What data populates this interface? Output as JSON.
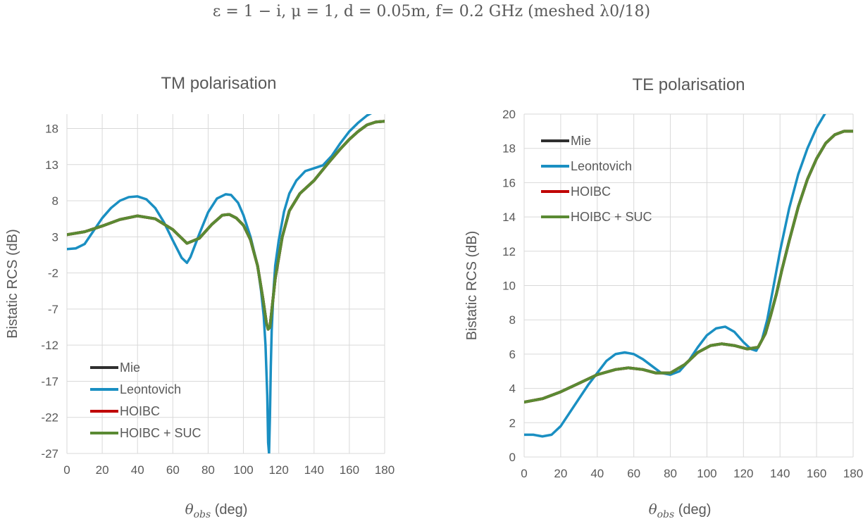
{
  "figure_title": "ε = 1 − i, μ = 1, d = 0.05m, f= 0.2 GHz (meshed λ0/18)",
  "colors": {
    "Mie": "#2f2f2f",
    "Leontovich": "#1a8fc2",
    "HOIBC": "#c00000",
    "HOIBC + SUC": "#5a8a33",
    "grid": "#d9d9d9",
    "text": "#595959"
  },
  "chart_data": [
    {
      "type": "line",
      "title": "TM polarisation",
      "xlabel_main": "θ",
      "xlabel_sub": "obs",
      "xlabel_unit": " (deg)",
      "ylabel": "Bistatic RCS (dB)",
      "xlim": [
        0,
        180
      ],
      "ylim": [
        -27,
        20
      ],
      "xticks": [
        "0",
        "20",
        "40",
        "60",
        "80",
        "100",
        "120",
        "140",
        "160",
        "180"
      ],
      "yticks": [
        "18",
        "13",
        "8",
        "3",
        "-2",
        "-7",
        "-12",
        "-17",
        "-22",
        "-27"
      ],
      "grid": true,
      "legend_position": "bottom-left",
      "series": [
        {
          "name": "Mie",
          "x": [
            0,
            10,
            20,
            30,
            40,
            50,
            60,
            68,
            75,
            82,
            88,
            92,
            96,
            100,
            104,
            108,
            111,
            113,
            114,
            115,
            116,
            118,
            122,
            126,
            132,
            140,
            148,
            155,
            160,
            165,
            170,
            175,
            180
          ],
          "values": [
            3.3,
            3.7,
            4.5,
            5.4,
            5.9,
            5.5,
            4.0,
            2.1,
            2.8,
            4.7,
            6.0,
            6.1,
            5.6,
            4.6,
            2.6,
            -1.0,
            -5.5,
            -8.9,
            -9.8,
            -9.5,
            -7.3,
            -2.8,
            3.0,
            6.6,
            9.0,
            10.8,
            13.2,
            15.2,
            16.5,
            17.6,
            18.5,
            18.9,
            19.0
          ]
        },
        {
          "name": "Leontovich",
          "x": [
            0,
            5,
            10,
            15,
            20,
            25,
            30,
            35,
            40,
            45,
            50,
            55,
            60,
            65,
            68,
            70,
            75,
            80,
            85,
            90,
            93,
            97,
            100,
            104,
            108,
            110,
            111.5,
            112.5,
            113.5,
            114,
            114.5,
            115,
            115.5,
            116,
            117,
            118,
            120,
            123,
            126,
            130,
            135,
            140,
            145,
            150,
            155,
            160,
            165,
            170,
            175,
            180
          ],
          "values": [
            1.3,
            1.4,
            2.0,
            3.8,
            5.6,
            7.0,
            8.0,
            8.5,
            8.6,
            8.2,
            7.0,
            5.0,
            2.5,
            0.1,
            -0.6,
            0.2,
            3.4,
            6.4,
            8.3,
            8.9,
            8.8,
            7.7,
            6.0,
            3.0,
            -1.0,
            -4.5,
            -8.0,
            -12.0,
            -19.0,
            -25.5,
            -27,
            -22.0,
            -15.0,
            -10.0,
            -4.6,
            -1.0,
            2.5,
            6.5,
            9.0,
            10.8,
            12.1,
            12.5,
            12.9,
            14.2,
            16.0,
            17.6,
            18.8,
            19.8,
            20.5,
            21.0
          ]
        },
        {
          "name": "HOIBC",
          "x": [
            0,
            10,
            20,
            30,
            40,
            50,
            60,
            68,
            75,
            82,
            88,
            92,
            96,
            100,
            104,
            108,
            111,
            113,
            114,
            115,
            116,
            118,
            122,
            126,
            132,
            140,
            148,
            155,
            160,
            165,
            170,
            175,
            180
          ],
          "values": [
            3.3,
            3.7,
            4.5,
            5.4,
            5.9,
            5.5,
            4.0,
            2.1,
            2.8,
            4.7,
            6.0,
            6.1,
            5.6,
            4.6,
            2.6,
            -1.0,
            -5.5,
            -8.9,
            -9.8,
            -9.5,
            -7.3,
            -2.8,
            3.0,
            6.6,
            9.0,
            10.8,
            13.2,
            15.2,
            16.5,
            17.6,
            18.5,
            18.9,
            19.0
          ]
        },
        {
          "name": "HOIBC + SUC",
          "x": [
            0,
            10,
            20,
            30,
            40,
            50,
            60,
            68,
            75,
            82,
            88,
            92,
            96,
            100,
            104,
            108,
            111,
            113,
            114,
            115,
            116,
            118,
            122,
            126,
            132,
            140,
            148,
            155,
            160,
            165,
            170,
            175,
            180
          ],
          "values": [
            3.3,
            3.7,
            4.5,
            5.4,
            5.9,
            5.5,
            4.0,
            2.1,
            2.8,
            4.7,
            6.0,
            6.1,
            5.6,
            4.6,
            2.6,
            -1.0,
            -5.5,
            -8.9,
            -9.8,
            -9.5,
            -7.3,
            -2.8,
            3.0,
            6.6,
            9.0,
            10.8,
            13.2,
            15.2,
            16.5,
            17.6,
            18.5,
            18.9,
            19.0
          ]
        }
      ]
    },
    {
      "type": "line",
      "title": "TE polarisation",
      "xlabel_main": "θ",
      "xlabel_sub": "obs",
      "xlabel_unit": " (deg)",
      "ylabel": "Bistatic RCS (dB)",
      "xlim": [
        0,
        180
      ],
      "ylim": [
        0,
        20
      ],
      "xticks": [
        "0",
        "20",
        "40",
        "60",
        "80",
        "100",
        "120",
        "140",
        "160",
        "180"
      ],
      "yticks": [
        "0",
        "2",
        "4",
        "6",
        "8",
        "10",
        "12",
        "14",
        "16",
        "18",
        "20"
      ],
      "grid": true,
      "legend_position": "top-left",
      "series": [
        {
          "name": "Mie",
          "x": [
            0,
            10,
            20,
            30,
            40,
            50,
            57,
            65,
            72,
            80,
            88,
            95,
            102,
            108,
            115,
            122,
            128,
            132,
            135,
            138,
            141,
            145,
            150,
            155,
            160,
            165,
            170,
            175,
            180
          ],
          "values": [
            3.2,
            3.4,
            3.8,
            4.3,
            4.8,
            5.1,
            5.2,
            5.1,
            4.9,
            4.9,
            5.4,
            6.1,
            6.5,
            6.6,
            6.5,
            6.3,
            6.4,
            7.2,
            8.3,
            9.5,
            10.9,
            12.6,
            14.6,
            16.2,
            17.4,
            18.3,
            18.8,
            19.0,
            19.0
          ]
        },
        {
          "name": "Leontovich",
          "x": [
            0,
            5,
            10,
            15,
            20,
            25,
            30,
            35,
            40,
            45,
            50,
            55,
            60,
            65,
            70,
            75,
            80,
            85,
            90,
            95,
            100,
            105,
            110,
            115,
            120,
            124,
            127,
            130,
            133,
            136,
            140,
            145,
            150,
            155,
            160,
            165,
            170,
            175,
            180
          ],
          "values": [
            1.3,
            1.3,
            1.2,
            1.3,
            1.8,
            2.6,
            3.4,
            4.2,
            4.9,
            5.6,
            6.0,
            6.1,
            6.0,
            5.7,
            5.3,
            4.9,
            4.8,
            5.0,
            5.6,
            6.4,
            7.1,
            7.5,
            7.6,
            7.3,
            6.7,
            6.3,
            6.2,
            6.8,
            8.0,
            9.7,
            12.0,
            14.5,
            16.5,
            18.0,
            19.2,
            20.1,
            20.6,
            20.8,
            20.9
          ]
        },
        {
          "name": "HOIBC",
          "x": [
            0,
            10,
            20,
            30,
            40,
            50,
            57,
            65,
            72,
            80,
            88,
            95,
            102,
            108,
            115,
            122,
            128,
            132,
            135,
            138,
            141,
            145,
            150,
            155,
            160,
            165,
            170,
            175,
            180
          ],
          "values": [
            3.2,
            3.4,
            3.8,
            4.3,
            4.8,
            5.1,
            5.2,
            5.1,
            4.9,
            4.9,
            5.4,
            6.1,
            6.5,
            6.6,
            6.5,
            6.3,
            6.4,
            7.2,
            8.3,
            9.5,
            10.9,
            12.6,
            14.6,
            16.2,
            17.4,
            18.3,
            18.8,
            19.0,
            19.0
          ]
        },
        {
          "name": "HOIBC + SUC",
          "x": [
            0,
            10,
            20,
            30,
            40,
            50,
            57,
            65,
            72,
            80,
            88,
            95,
            102,
            108,
            115,
            122,
            128,
            132,
            135,
            138,
            141,
            145,
            150,
            155,
            160,
            165,
            170,
            175,
            180
          ],
          "values": [
            3.2,
            3.4,
            3.8,
            4.3,
            4.8,
            5.1,
            5.2,
            5.1,
            4.9,
            4.9,
            5.4,
            6.1,
            6.5,
            6.6,
            6.5,
            6.3,
            6.4,
            7.2,
            8.3,
            9.5,
            10.9,
            12.6,
            14.6,
            16.2,
            17.4,
            18.3,
            18.8,
            19.0,
            19.0
          ]
        }
      ]
    }
  ]
}
